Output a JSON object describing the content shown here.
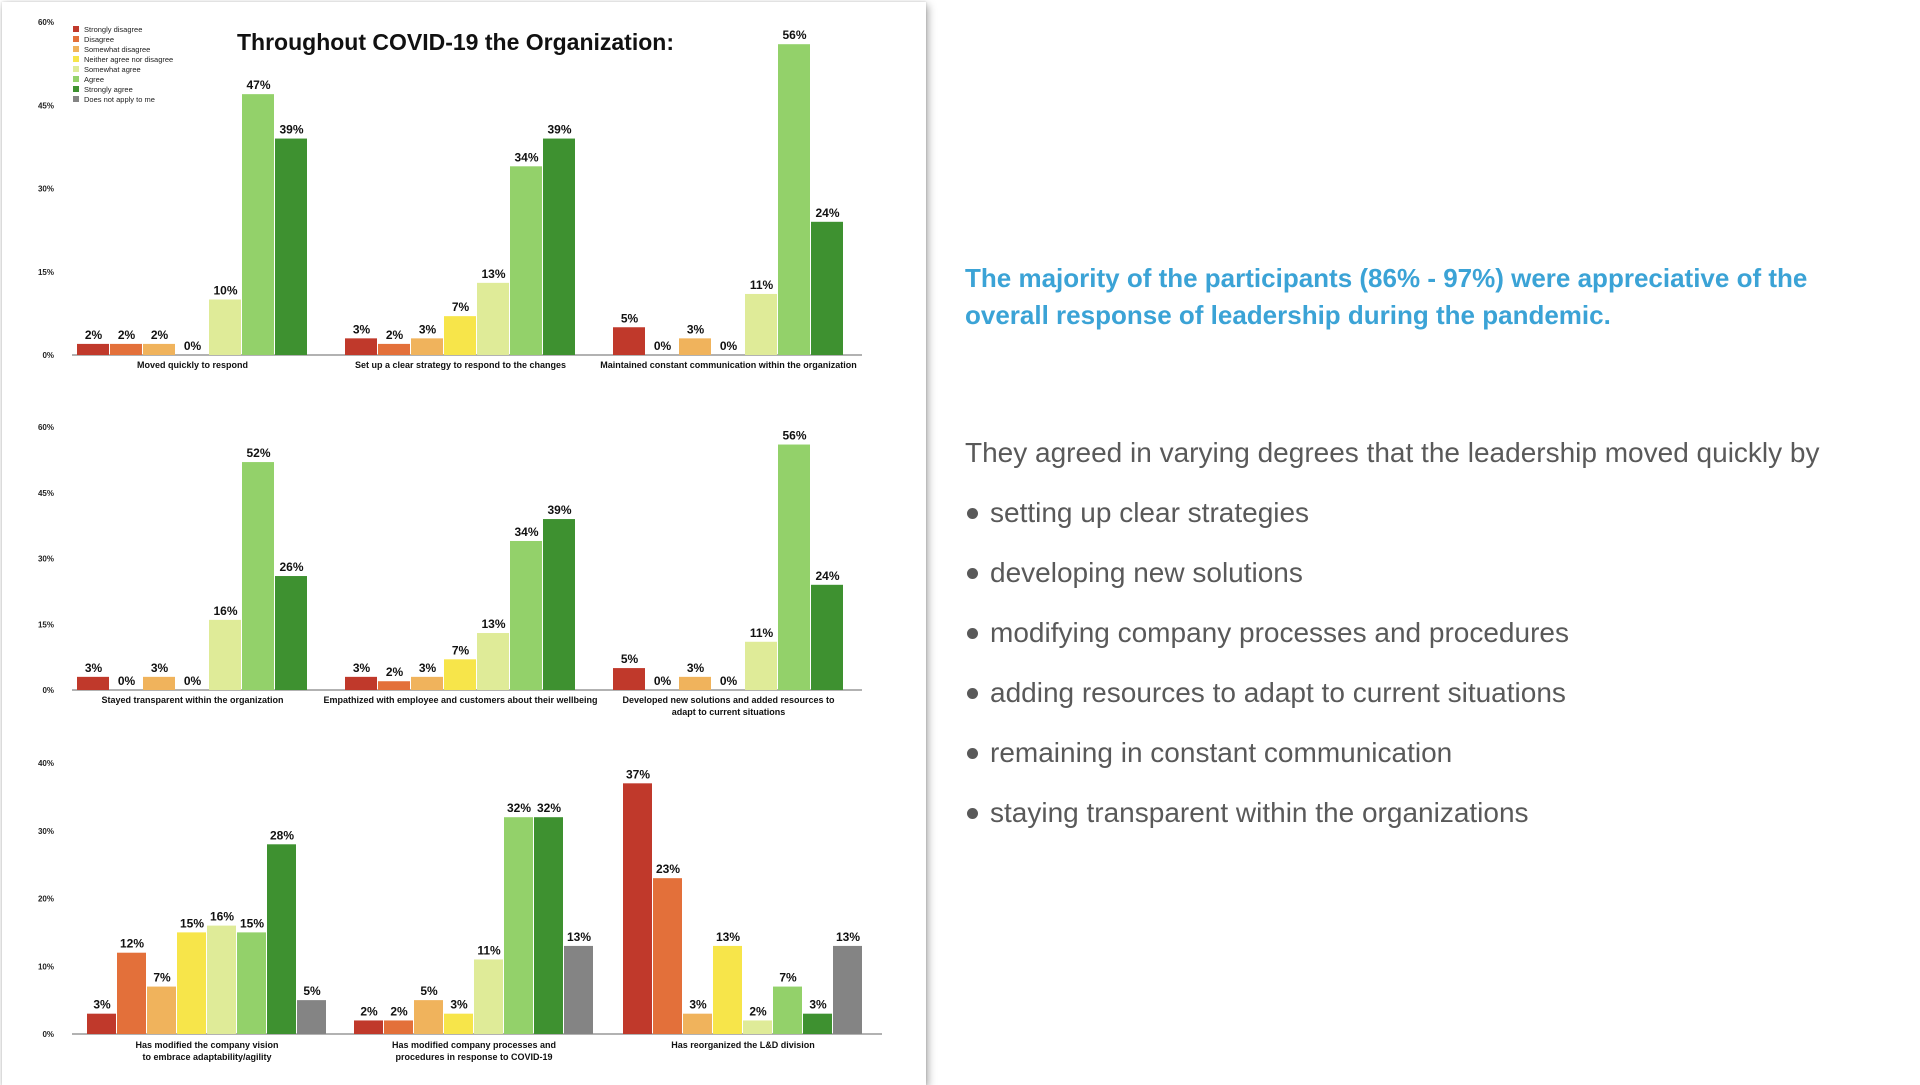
{
  "slide": {
    "headline": "The majority of the participants (86% - 97%) were appreciative of the overall response of leadership during the pandemic.",
    "intro": "They agreed in varying degrees that the leadership moved quickly by",
    "bullets": [
      "setting up clear strategies",
      "developing new solutions",
      "modifying company processes and procedures",
      "adding resources to adapt to current situations",
      "remaining in constant communication",
      "staying transparent within the organizations"
    ]
  },
  "chart_data": {
    "type": "bar",
    "title": "Throughout COVID-19 the Organization:",
    "legend": [
      {
        "name": "Strongly disagree",
        "color": "#c0392b"
      },
      {
        "name": "Disagree",
        "color": "#e3703a"
      },
      {
        "name": "Somewhat disagree",
        "color": "#f0b35c"
      },
      {
        "name": "Neither agree nor disagree",
        "color": "#f7e54a"
      },
      {
        "name": "Somewhat agree",
        "color": "#dfeb98"
      },
      {
        "name": "Agree",
        "color": "#93d16a"
      },
      {
        "name": "Strongly agree",
        "color": "#3e9130"
      },
      {
        "name": "Does not apply to me",
        "color": "#848484"
      }
    ],
    "panels": [
      {
        "ylim": [
          0,
          60
        ],
        "yticks": [
          "0%",
          "15%",
          "30%",
          "45%",
          "60%"
        ],
        "series_count": 7,
        "groups": [
          {
            "label": [
              "Moved quickly to respond"
            ],
            "values": [
              2,
              2,
              2,
              0,
              10,
              47,
              39
            ]
          },
          {
            "label": [
              "Set up a clear strategy to respond to the changes"
            ],
            "values": [
              3,
              2,
              3,
              7,
              13,
              34,
              39
            ]
          },
          {
            "label": [
              "Maintained constant communication within the organization"
            ],
            "values": [
              5,
              0,
              3,
              0,
              11,
              56,
              24
            ]
          }
        ]
      },
      {
        "ylim": [
          0,
          60
        ],
        "yticks": [
          "0%",
          "15%",
          "30%",
          "45%",
          "60%"
        ],
        "series_count": 7,
        "groups": [
          {
            "label": [
              "Stayed transparent within the organization"
            ],
            "values": [
              3,
              0,
              3,
              0,
              16,
              52,
              26
            ]
          },
          {
            "label": [
              "Empathized with employee and customers about their wellbeing"
            ],
            "values": [
              3,
              2,
              3,
              7,
              13,
              34,
              39
            ]
          },
          {
            "label": [
              "Developed new solutions and added resources to",
              "adapt to current situations"
            ],
            "values": [
              5,
              0,
              3,
              0,
              11,
              56,
              24
            ]
          }
        ]
      },
      {
        "ylim": [
          0,
          40
        ],
        "yticks": [
          "0%",
          "10%",
          "20%",
          "30%",
          "40%"
        ],
        "series_count": 8,
        "groups": [
          {
            "label": [
              "Has modified the company vision",
              "to embrace adaptability/agility"
            ],
            "values": [
              3,
              12,
              7,
              15,
              16,
              15,
              28,
              5
            ]
          },
          {
            "label": [
              "Has modified company processes and",
              "procedures in response to COVID-19"
            ],
            "values": [
              2,
              2,
              5,
              3,
              11,
              32,
              32,
              13
            ]
          },
          {
            "label": [
              "Has reorganized the L&D division"
            ],
            "values": [
              37,
              23,
              3,
              13,
              2,
              7,
              3,
              13
            ]
          }
        ]
      }
    ]
  }
}
